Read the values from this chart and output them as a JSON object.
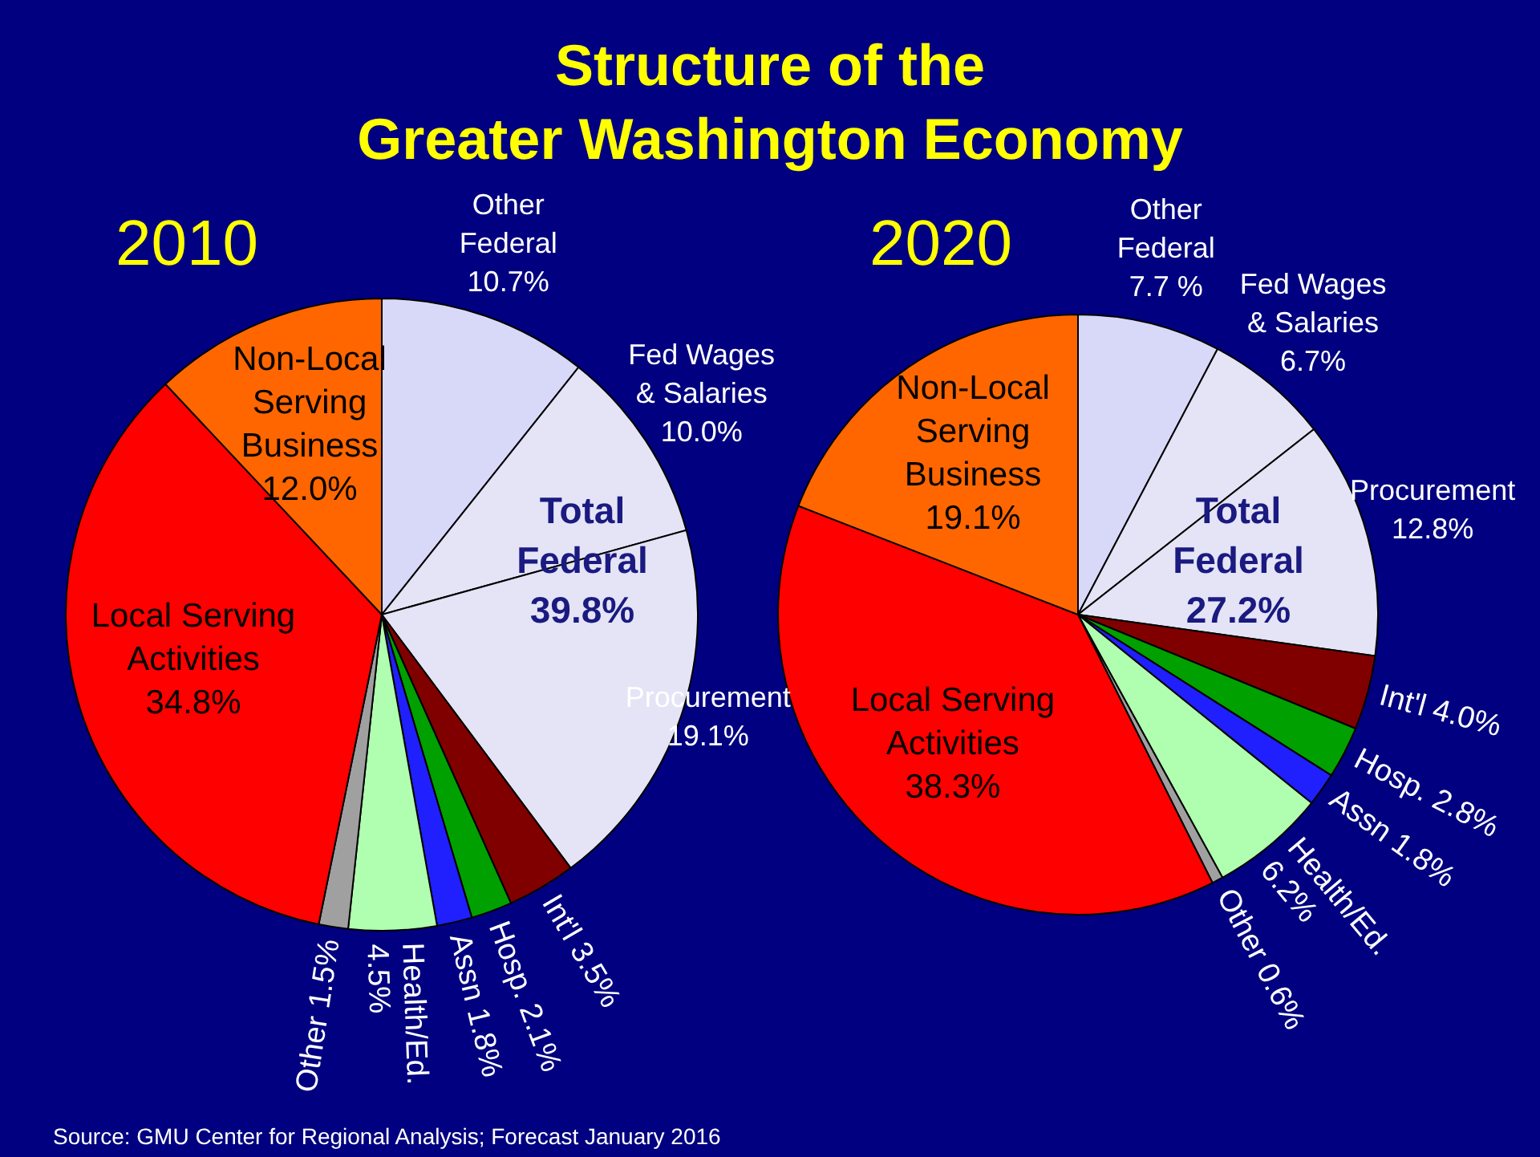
{
  "chart_data": [
    {
      "type": "pie",
      "title": "Structure of the\nGreater Washington Economy",
      "subtitle": "2010",
      "categories": [
        "Other Federal",
        "Fed Wages & Salaries",
        "Procurement",
        "Int'l",
        "Hosp.",
        "Assn",
        "Health/Ed.",
        "Other",
        "Local Serving Activities",
        "Non-Local Serving Business"
      ],
      "values": [
        10.7,
        10.0,
        19.1,
        3.5,
        2.1,
        1.8,
        4.5,
        1.5,
        34.8,
        12.0
      ],
      "value_labels": [
        "10.7%",
        "10.0%",
        "19.1%",
        "3.5%",
        "2.1%",
        "1.8%",
        "4.5%",
        "1.5%",
        "34.8%",
        "12.0%"
      ],
      "colors": [
        "#d8d8f8",
        "#e4e4f6",
        "#e4e4f6",
        "#800000",
        "#00a000",
        "#2020ff",
        "#b0ffb0",
        "#a0a0a0",
        "#ff0000",
        "#ff6600"
      ],
      "annotations": [
        "Total Federal 39.8%"
      ],
      "legend": false
    },
    {
      "type": "pie",
      "subtitle": "2020",
      "categories": [
        "Other Federal",
        "Fed Wages & Salaries",
        "Procurement",
        "Int'l",
        "Hosp.",
        "Assn",
        "Health/Ed.",
        "Other",
        "Local Serving Activities",
        "Non-Local Serving Business"
      ],
      "values": [
        7.7,
        6.7,
        12.8,
        4.0,
        2.8,
        1.8,
        6.2,
        0.6,
        38.3,
        19.1
      ],
      "value_labels": [
        "7.7 %",
        "6.7%",
        "12.8%",
        "4.0%",
        "2.8%",
        "1.8%",
        "6.2%",
        "0.6%",
        "38.3%",
        "19.1%"
      ],
      "colors": [
        "#d8d8f8",
        "#e4e4f6",
        "#e4e4f6",
        "#800000",
        "#00a000",
        "#2020ff",
        "#b0ffb0",
        "#a0a0a0",
        "#ff0000",
        "#ff6600"
      ],
      "annotations": [
        "Total Federal 27.2%",
        "Source: GMU Center for Regional Analysis; Forecast January 2016"
      ],
      "legend": false
    }
  ]
}
